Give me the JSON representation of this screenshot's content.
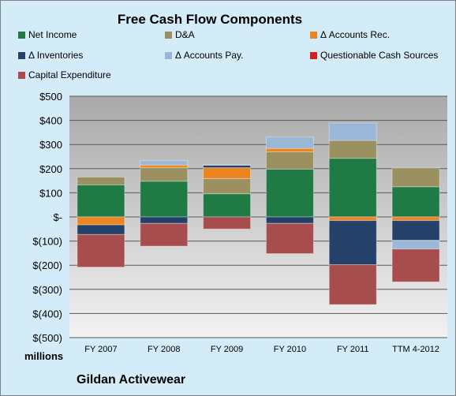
{
  "chart_data": {
    "type": "bar",
    "stacked": true,
    "title": "Free Cash Flow Components",
    "categories": [
      "FY 2007",
      "FY 2008",
      "FY 2009",
      "FY 2010",
      "FY 2011",
      "TTM 4-2012"
    ],
    "series": [
      {
        "name": "Net Income",
        "color": "#1f7a45",
        "values": [
          133,
          148,
          96,
          198,
          243,
          125
        ]
      },
      {
        "name": "D&A",
        "color": "#9b9060",
        "values": [
          32,
          57,
          63,
          72,
          74,
          78
        ]
      },
      {
        "name": "Δ Accounts Rec.",
        "color": "#ec8520",
        "values": [
          -33,
          10,
          45,
          14,
          -15,
          -15
        ]
      },
      {
        "name": "Δ Inventories",
        "color": "#24416a",
        "values": [
          -40,
          -27,
          10,
          -27,
          -183,
          -82
        ]
      },
      {
        "name": "Δ Accounts Pay.",
        "color": "#9bb7d8",
        "values": [
          0,
          18,
          3,
          47,
          72,
          -36
        ]
      },
      {
        "name": "Questionable Cash Sources",
        "color": "#d42020",
        "values": [
          0,
          0,
          0,
          0,
          0,
          0
        ]
      },
      {
        "name": "Capital Expenditure",
        "color": "#a84d4d",
        "values": [
          -135,
          -94,
          -50,
          -125,
          -165,
          -136
        ]
      }
    ],
    "ylim": [
      -500,
      500
    ],
    "yticks": [
      500,
      400,
      300,
      200,
      100,
      0,
      -100,
      -200,
      -300,
      -400,
      -500
    ],
    "ytick_labels": [
      "$500",
      "$400",
      "$300",
      "$200",
      "$100",
      "$-",
      "$(100)",
      "$(200)",
      "$(300)",
      "$(400)",
      "$(500)"
    ],
    "ylabel": "millions",
    "grid": true,
    "legend_position": "top"
  },
  "caption": "Gildan Activewear"
}
